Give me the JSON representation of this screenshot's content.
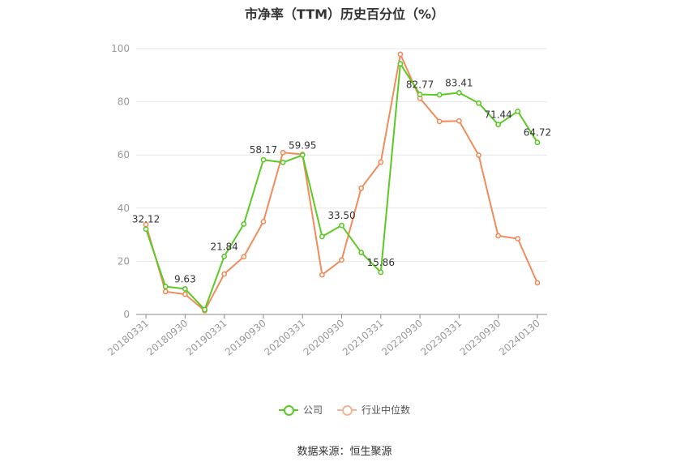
{
  "chart_data": {
    "type": "line",
    "title": "市净率（TTM）历史百分位（%）",
    "xlabel": "",
    "ylabel": "",
    "ylim": [
      0,
      100
    ],
    "yticks": [
      0,
      20,
      40,
      60,
      80,
      100
    ],
    "grid": true,
    "legend_position": "bottom",
    "x": [
      "20180331",
      "20180630",
      "20180930",
      "20181231",
      "20190331",
      "20190630",
      "20190930",
      "20191231",
      "20200331",
      "20200630",
      "20200930",
      "20201231",
      "20210331",
      "20210630",
      "20220930",
      "20221231",
      "20230331",
      "20230630",
      "20230930",
      "20231231",
      "20240130"
    ],
    "x_tick_labels": [
      "20180331",
      "20180930",
      "20190331",
      "20190930",
      "20200331",
      "20200930",
      "20210331",
      "20220930",
      "20230331",
      "20230930",
      "20240130"
    ],
    "x_tick_indices": [
      0,
      2,
      4,
      6,
      8,
      10,
      12,
      14,
      16,
      18,
      20
    ],
    "series": [
      {
        "name": "公司",
        "color": "#5cc926",
        "values": [
          32.12,
          10.5,
          9.63,
          1.8,
          21.84,
          34.0,
          58.17,
          57.2,
          59.95,
          29.3,
          33.5,
          23.3,
          15.86,
          94.3,
          82.77,
          82.6,
          83.41,
          79.5,
          71.44,
          76.4,
          64.72
        ],
        "labels": {
          "0": "32.12",
          "2": "9.63",
          "4": "21.84",
          "6": "58.17",
          "8": "59.95",
          "10": "33.50",
          "12": "15.86",
          "14": "82.77",
          "16": "83.41",
          "18": "71.44",
          "20": "64.72"
        }
      },
      {
        "name": "行业中位数",
        "color": "#f08c5c",
        "values": [
          33.8,
          8.6,
          7.6,
          1.4,
          15.2,
          21.7,
          34.9,
          60.9,
          60.2,
          14.9,
          20.5,
          47.5,
          57.3,
          97.9,
          81.3,
          72.6,
          72.8,
          59.9,
          29.6,
          28.5,
          11.9
        ]
      }
    ]
  },
  "legend": {
    "company": "公司",
    "industry": "行业中位数"
  },
  "source": "数据来源：恒生聚源"
}
